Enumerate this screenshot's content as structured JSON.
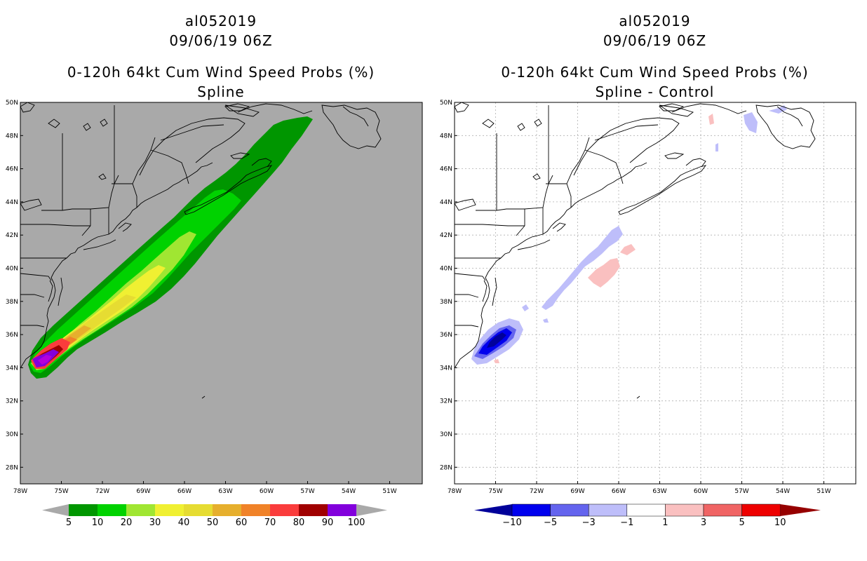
{
  "left_panel": {
    "title_line1": "al052019",
    "title_line2": "09/06/19 06Z",
    "title_line3": "0-120h 64kt Cum Wind Speed Probs (%)",
    "title_line4": "Spline",
    "background": "#a9a9a9"
  },
  "right_panel": {
    "title_line1": "al052019",
    "title_line2": "09/06/19 06Z",
    "title_line3": "0-120h 64kt Cum Wind Speed Probs (%)",
    "title_line4": "Spline - Control",
    "background": "#ffffff"
  },
  "lat_labels": [
    "50N",
    "48N",
    "46N",
    "44N",
    "42N",
    "40N",
    "38N",
    "36N",
    "34N",
    "32N",
    "30N",
    "28N"
  ],
  "lon_labels": [
    "78W",
    "75W",
    "72W",
    "69W",
    "66W",
    "63W",
    "60W",
    "57W",
    "54W",
    "51W"
  ],
  "left_colorbar": {
    "labels": [
      "5",
      "10",
      "20",
      "30",
      "40",
      "50",
      "60",
      "70",
      "80",
      "90",
      "100"
    ],
    "colors": [
      "#009600",
      "#00d200",
      "#a0e632",
      "#f0f032",
      "#e6dc32",
      "#e6af2d",
      "#f08228",
      "#fa3c3c",
      "#a00000",
      "#8200dc"
    ]
  },
  "right_colorbar": {
    "labels": [
      "-10",
      "-5",
      "-3",
      "-1",
      "1",
      "3",
      "5",
      "10"
    ],
    "colors": [
      "#00009a",
      "#0000ee",
      "#6464ee",
      "#bebefa",
      "#ffffff",
      "#fac0c0",
      "#f06464",
      "#ee0000",
      "#960000"
    ]
  }
}
